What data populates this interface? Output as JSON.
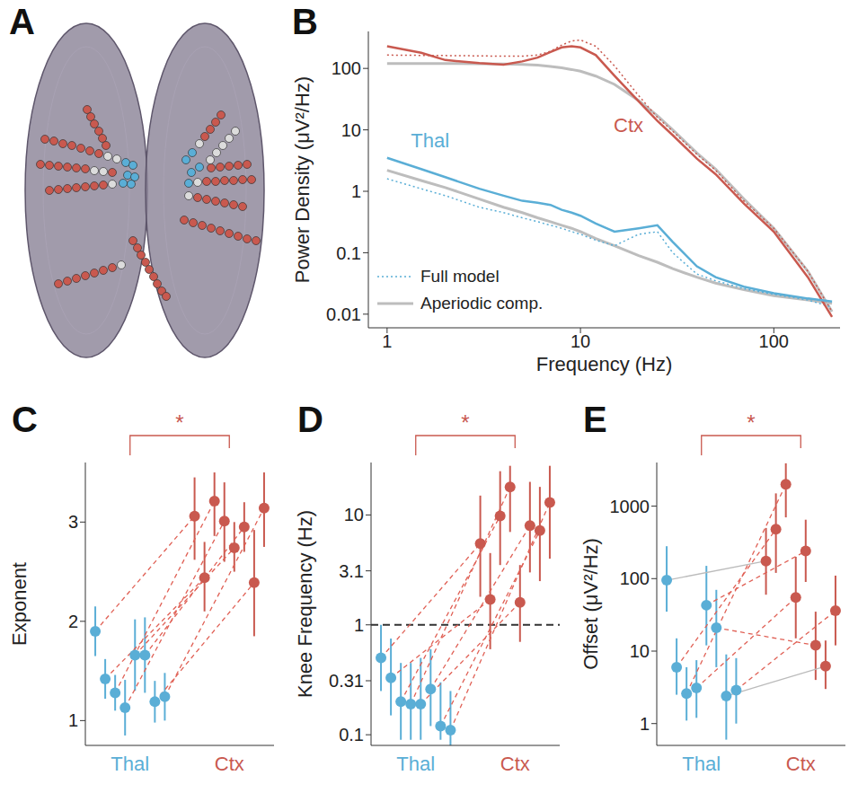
{
  "chart_data": [
    {
      "panel": "A",
      "type": "scatter",
      "tick_labels": false,
      "series": [
        {
          "color": "#c9594f",
          "x": [
            97,
            101,
            105,
            110,
            114,
            118,
            50,
            60,
            70,
            80,
            90,
            100,
            110,
            45,
            55,
            65,
            75,
            85,
            95,
            125,
            55,
            65,
            75,
            85,
            95,
            105,
            115,
            148,
            153,
            157,
            162,
            166,
            171,
            175,
            180,
            185,
            65,
            75,
            85,
            95,
            105,
            115,
            125,
            246,
            240,
            234,
            228,
            275,
            265,
            255,
            245,
            235,
            280,
            270,
            260,
            250,
            240,
            230,
            270,
            260,
            250,
            240,
            230,
            220,
            205,
            215,
            225,
            235,
            245,
            255,
            265,
            275,
            285
          ],
          "values": [
            278,
            270,
            262,
            254,
            246,
            238,
            245,
            243,
            240,
            238,
            235,
            232,
            229,
            217,
            216,
            215,
            214,
            213,
            212,
            208,
            188,
            189,
            190,
            191,
            192,
            193,
            194,
            132,
            124,
            116,
            108,
            100,
            92,
            84,
            76,
            70,
            84,
            87,
            90,
            93,
            96,
            99,
            102,
            272,
            264,
            256,
            248,
            217,
            216,
            215,
            214,
            213,
            200,
            200,
            199,
            199,
            198,
            198,
            170,
            172,
            174,
            176,
            178,
            180,
            155,
            152,
            149,
            146,
            143,
            140,
            137,
            134,
            132
          ]
        },
        {
          "color": "#dcdcdc",
          "x": [
            120,
            130,
            105,
            115,
            125,
            135,
            262,
            255,
            248,
            241,
            234,
            222,
            220,
            210
          ],
          "values": [
            226,
            223,
            210,
            209,
            195,
            105,
            254,
            246,
            238,
            230,
            222,
            240,
            197,
            182
          ]
        },
        {
          "color": "#5aaed6",
          "x": [
            140,
            148,
            142,
            150,
            137,
            146,
            214,
            207,
            222,
            213,
            210
          ],
          "values": [
            219,
            216,
            205,
            203,
            196,
            195,
            230,
            222,
            214,
            208,
            196
          ]
        }
      ]
    },
    {
      "panel": "B",
      "type": "line",
      "log": true,
      "x_label": "Frequency (Hz)",
      "y_label": "Power Density (μV²/Hz)",
      "x": [
        1,
        1.5,
        2,
        3,
        4,
        5,
        6,
        7,
        8,
        9,
        10,
        12,
        15,
        20,
        25,
        30,
        40,
        50,
        70,
        100,
        150,
        200
      ],
      "xlim": [
        0.8,
        220
      ],
      "xticks": [
        1,
        10,
        100
      ],
      "ylim": [
        0.006,
        400
      ],
      "yticks": [
        0.01,
        0.1,
        1,
        10,
        100
      ],
      "legend": "lower left",
      "components": [
        "Full model",
        "Aperiodic comp."
      ],
      "series": [
        {
          "name": "Ctx",
          "color": "#c9594f",
          "values": [
            230,
            180,
            137,
            122,
            115,
            130,
            150,
            185,
            220,
            230,
            220,
            165,
            76,
            29,
            14,
            8.2,
            3.4,
            1.9,
            0.63,
            0.22,
            0.04,
            0.009
          ],
          "full_model": [
            165,
            163,
            162,
            160,
            158,
            158,
            165,
            190,
            240,
            280,
            290,
            230,
            110,
            36,
            16,
            9.5,
            4,
            2.2,
            0.7,
            0.25,
            0.05,
            0.011
          ],
          "aperiodic": [
            120,
            120,
            120,
            119,
            118,
            116,
            113,
            108,
            102,
            96,
            90,
            75,
            55,
            30,
            17,
            10,
            4.2,
            2.3,
            0.75,
            0.25,
            0.05,
            0.011
          ]
        },
        {
          "name": "Thal",
          "color": "#5aaed6",
          "values": [
            3.5,
            2.3,
            1.7,
            1.1,
            0.85,
            0.7,
            0.65,
            0.6,
            0.5,
            0.45,
            0.4,
            0.3,
            0.22,
            0.25,
            0.28,
            0.15,
            0.06,
            0.04,
            0.028,
            0.022,
            0.018,
            0.016
          ],
          "full_model": [
            1.6,
            1.1,
            0.85,
            0.55,
            0.45,
            0.37,
            0.32,
            0.28,
            0.25,
            0.22,
            0.2,
            0.16,
            0.13,
            0.2,
            0.22,
            0.1,
            0.045,
            0.035,
            0.026,
            0.021,
            0.017,
            0.013
          ],
          "aperiodic": [
            2.2,
            1.5,
            1.15,
            0.75,
            0.55,
            0.45,
            0.37,
            0.32,
            0.28,
            0.25,
            0.22,
            0.17,
            0.13,
            0.09,
            0.07,
            0.055,
            0.04,
            0.032,
            0.025,
            0.02,
            0.017,
            0.015
          ]
        }
      ]
    },
    {
      "panel": "C",
      "type": "scatter",
      "y_label": "Exponent",
      "xlim": [
        -1,
        18
      ],
      "xticks": [
        {
          "value": 3.5,
          "label": "Thal"
        },
        {
          "value": 13.5,
          "label": "Ctx"
        }
      ],
      "colors": [
        "#5aaed6",
        "#c9594f"
      ],
      "ylim": [
        0.75,
        3.6
      ],
      "yticks": [
        1,
        2,
        3
      ],
      "annotations": [
        "*"
      ],
      "subjects": [
        {
          "thal_x": 0,
          "thal": 1.9,
          "thal_ci": [
            1.65,
            2.15
          ],
          "ctx_x": 10,
          "ctx": 3.06,
          "ctx_ci": [
            2.62,
            3.45
          ],
          "color": "#e06055",
          "line_style": "dashed"
        },
        {
          "thal_x": 1,
          "thal": 1.42,
          "thal_ci": [
            1.22,
            1.62
          ],
          "ctx_x": 11,
          "ctx": 2.44,
          "ctx_ci": [
            2.1,
            2.8
          ],
          "color": "#e06055",
          "line_style": "dashed"
        },
        {
          "thal_x": 2,
          "thal": 1.28,
          "thal_ci": [
            1.1,
            1.46
          ],
          "ctx_x": 12,
          "ctx": 3.21,
          "ctx_ci": [
            2.86,
            3.5
          ],
          "color": "#e06055",
          "line_style": "dashed"
        },
        {
          "thal_x": 3,
          "thal": 1.13,
          "thal_ci": [
            0.85,
            1.41
          ],
          "ctx_x": 13,
          "ctx": 3.01,
          "ctx_ci": [
            2.6,
            3.4
          ],
          "color": "#e06055",
          "line_style": "dashed"
        },
        {
          "thal_x": 4,
          "thal": 1.66,
          "thal_ci": [
            1.3,
            2.02
          ],
          "ctx_x": 14,
          "ctx": 2.74,
          "ctx_ci": [
            2.5,
            3.0
          ],
          "color": "#e06055",
          "line_style": "dashed"
        },
        {
          "thal_x": 5,
          "thal": 1.66,
          "thal_ci": [
            1.28,
            2.04
          ],
          "ctx_x": 15,
          "ctx": 2.95,
          "ctx_ci": [
            2.7,
            3.2
          ],
          "color": "#e06055",
          "line_style": "dashed"
        },
        {
          "thal_x": 6,
          "thal": 1.19,
          "thal_ci": [
            0.98,
            1.4
          ],
          "ctx_x": 16,
          "ctx": 2.39,
          "ctx_ci": [
            1.85,
            2.92
          ],
          "color": "#e06055",
          "line_style": "dashed"
        },
        {
          "thal_x": 7,
          "thal": 1.24,
          "thal_ci": [
            1.0,
            1.48
          ],
          "ctx_x": 17,
          "ctx": 3.14,
          "ctx_ci": [
            2.75,
            3.5
          ],
          "color": "#e06055",
          "line_style": "dashed"
        }
      ]
    },
    {
      "panel": "D",
      "type": "scatter",
      "log": "y",
      "y_label": "Knee Frequency (Hz)",
      "xlim": [
        -1,
        18
      ],
      "xticks": [
        {
          "value": 3.5,
          "label": "Thal"
        },
        {
          "value": 13.5,
          "label": "Ctx"
        }
      ],
      "colors": [
        "#5aaed6",
        "#c9594f"
      ],
      "ylim": [
        0.08,
        30
      ],
      "yticks": [
        0.1,
        0.31,
        1,
        3.1,
        10
      ],
      "hline": 1,
      "annotations": [
        "*"
      ],
      "subjects": [
        {
          "thal_x": 0,
          "thal": 0.5,
          "thal_ci": [
            0.25,
            1.0
          ],
          "ctx_x": 10,
          "ctx": 5.5,
          "ctx_ci": [
            1.8,
            15
          ],
          "color": "#e06055",
          "line_style": "dashed"
        },
        {
          "thal_x": 1,
          "thal": 0.33,
          "thal_ci": [
            0.15,
            0.75
          ],
          "ctx_x": 11,
          "ctx": 1.7,
          "ctx_ci": [
            0.6,
            4.5
          ],
          "color": "#e06055",
          "line_style": "dashed"
        },
        {
          "thal_x": 2,
          "thal": 0.2,
          "thal_ci": [
            0.09,
            0.45
          ],
          "ctx_x": 12,
          "ctx": 9.8,
          "ctx_ci": [
            3.5,
            25
          ],
          "color": "#e06055",
          "line_style": "dashed"
        },
        {
          "thal_x": 3,
          "thal": 0.19,
          "thal_ci": [
            0.09,
            0.45
          ],
          "ctx_x": 13,
          "ctx": 18,
          "ctx_ci": [
            7,
            28
          ],
          "color": "#e06055",
          "line_style": "dashed"
        },
        {
          "thal_x": 4,
          "thal": 0.19,
          "thal_ci": [
            0.09,
            0.5
          ],
          "ctx_x": 14,
          "ctx": 1.6,
          "ctx_ci": [
            0.7,
            3.5
          ],
          "color": "#e06055",
          "line_style": "dashed"
        },
        {
          "thal_x": 5,
          "thal": 0.26,
          "thal_ci": [
            0.12,
            0.6
          ],
          "ctx_x": 15,
          "ctx": 8,
          "ctx_ci": [
            3,
            20
          ],
          "color": "#e06055",
          "line_style": "dashed"
        },
        {
          "thal_x": 6,
          "thal": 0.12,
          "thal_ci": [
            0.09,
            0.3
          ],
          "ctx_x": 16,
          "ctx": 7.2,
          "ctx_ci": [
            2.5,
            18
          ],
          "color": "#e06055",
          "line_style": "dashed"
        },
        {
          "thal_x": 7,
          "thal": 0.11,
          "thal_ci": [
            0.08,
            0.25
          ],
          "ctx_x": 17,
          "ctx": 13,
          "ctx_ci": [
            4,
            28
          ],
          "color": "#e06055",
          "line_style": "dashed"
        }
      ]
    },
    {
      "panel": "E",
      "type": "scatter",
      "log": "y",
      "y_label": "Offset (μV²/Hz)",
      "xlim": [
        -1,
        18
      ],
      "xticks": [
        {
          "value": 3.5,
          "label": "Thal"
        },
        {
          "value": 13.5,
          "label": "Ctx"
        }
      ],
      "colors": [
        "#5aaed6",
        "#c9594f"
      ],
      "ylim": [
        0.5,
        4000
      ],
      "yticks": [
        1,
        10,
        100,
        1000
      ],
      "annotations": [
        "*"
      ],
      "subjects": [
        {
          "thal_x": 0,
          "thal": 95,
          "thal_ci": [
            35,
            280
          ],
          "ctx_x": 10,
          "ctx": 175,
          "ctx_ci": [
            60,
            500
          ],
          "color": "#bbbbbb",
          "line_style": "solid"
        },
        {
          "thal_x": 1,
          "thal": 6,
          "thal_ci": [
            2.5,
            15
          ],
          "ctx_x": 11,
          "ctx": 480,
          "ctx_ci": [
            120,
            1500
          ],
          "color": "#e06055",
          "line_style": "dashed"
        },
        {
          "thal_x": 2,
          "thal": 2.6,
          "thal_ci": [
            1.1,
            6
          ],
          "ctx_x": 12,
          "ctx": 2000,
          "ctx_ci": [
            700,
            3900
          ],
          "color": "#e06055",
          "line_style": "dashed"
        },
        {
          "thal_x": 3,
          "thal": 3.1,
          "thal_ci": [
            1.2,
            7.5
          ],
          "ctx_x": 13,
          "ctx": 55,
          "ctx_ci": [
            15,
            200
          ],
          "color": "#e06055",
          "line_style": "dashed"
        },
        {
          "thal_x": 4,
          "thal": 43,
          "thal_ci": [
            12,
            150
          ],
          "ctx_x": 14,
          "ctx": 240,
          "ctx_ci": [
            90,
            650
          ],
          "color": "#e06055",
          "line_style": "dashed"
        },
        {
          "thal_x": 5,
          "thal": 21,
          "thal_ci": [
            6,
            70
          ],
          "ctx_x": 15,
          "ctx": 12,
          "ctx_ci": [
            4,
            35
          ],
          "color": "#e06055",
          "line_style": "dashed"
        },
        {
          "thal_x": 6,
          "thal": 2.4,
          "thal_ci": [
            0.6,
            9
          ],
          "ctx_x": 16,
          "ctx": 6.2,
          "ctx_ci": [
            3,
            14
          ],
          "color": "#bbbbbb",
          "line_style": "solid"
        },
        {
          "thal_x": 7,
          "thal": 2.9,
          "thal_ci": [
            1,
            8
          ],
          "ctx_x": 17,
          "ctx": 36,
          "ctx_ci": [
            12,
            110
          ],
          "color": "#e06055",
          "line_style": "dashed"
        }
      ]
    }
  ]
}
